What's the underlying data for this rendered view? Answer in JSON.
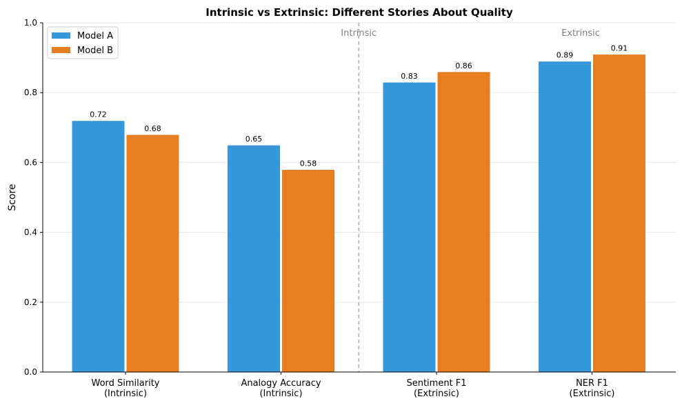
{
  "chart_data": {
    "type": "bar",
    "title": "Intrinsic vs Extrinsic: Different Stories About Quality",
    "xlabel": "",
    "ylabel": "Score",
    "ylim": [
      0,
      1.0
    ],
    "yticks": [
      "0.0",
      "0.2",
      "0.4",
      "0.6",
      "0.8",
      "1.0"
    ],
    "categories": [
      [
        "Word Similarity",
        "(Intrinsic)"
      ],
      [
        "Analogy Accuracy",
        "(Intrinsic)"
      ],
      [
        "Sentiment F1",
        "(Extrinsic)"
      ],
      [
        "NER F1",
        "(Extrinsic)"
      ]
    ],
    "series": [
      {
        "name": "Model A",
        "color": "#3498db",
        "values": [
          0.72,
          0.65,
          0.83,
          0.89
        ]
      },
      {
        "name": "Model B",
        "color": "#e67e22",
        "values": [
          0.68,
          0.58,
          0.86,
          0.91
        ]
      }
    ],
    "annotations": {
      "divider_between_categories": [
        1,
        2
      ],
      "left_label": "Intrinsic",
      "right_label": "Extrinsic"
    },
    "grid": "horizontal",
    "legend": "top-left"
  }
}
